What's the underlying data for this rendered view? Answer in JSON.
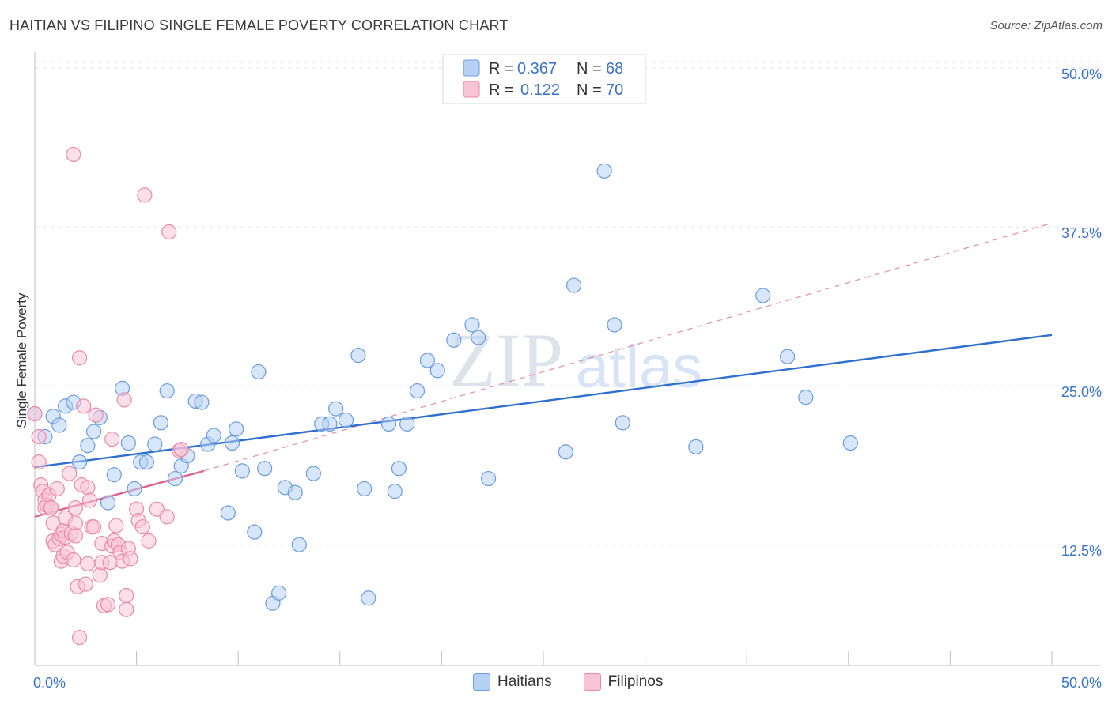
{
  "title": "HAITIAN VS FILIPINO SINGLE FEMALE POVERTY CORRELATION CHART",
  "source": "Source: ZipAtlas.com",
  "watermark": {
    "zip": "ZIP",
    "atlas": "atlas"
  },
  "legend": {
    "r_label": "R =",
    "n_label": "N =",
    "items": [
      {
        "r": "0.367",
        "n": "68",
        "fill": "#b6d1f3",
        "stroke": "#6a9be0"
      },
      {
        "r": "0.122",
        "n": "70",
        "fill": "#f9c4d5",
        "stroke": "#e98aa8"
      }
    ]
  },
  "bottom_legend": [
    {
      "label": "Haitians",
      "fill": "#b6d1f3",
      "stroke": "#6a9be0"
    },
    {
      "label": "Filipinos",
      "fill": "#f9c4d5",
      "stroke": "#e98aa8"
    }
  ],
  "chart_data": {
    "type": "scatter",
    "ylabel": "Single Female Poverty",
    "xlim": [
      0,
      50
    ],
    "ylim": [
      3,
      50.5
    ],
    "x_tick_labels": [
      {
        "value": 0,
        "label": "0.0%"
      },
      {
        "value": 50,
        "label": "50.0%"
      }
    ],
    "y_tick_labels": [
      {
        "value": 50,
        "label": "50.0%"
      },
      {
        "value": 37.5,
        "label": "37.5%"
      },
      {
        "value": 25,
        "label": "25.0%"
      },
      {
        "value": 12.5,
        "label": "12.5%"
      }
    ],
    "x_minor_ticks": [
      5,
      10,
      15,
      20,
      25,
      30,
      35,
      40,
      45,
      50
    ],
    "series": [
      {
        "name": "Haitians",
        "color": "#6a9be0",
        "fill": "#b6d1f3",
        "trend": {
          "x": [
            0,
            50
          ],
          "y": [
            18.6,
            29.0
          ],
          "color": "#2f6fd0"
        },
        "points": [
          [
            0.0,
            22.8
          ],
          [
            0.5,
            21.0
          ],
          [
            0.9,
            22.6
          ],
          [
            1.2,
            21.9
          ],
          [
            1.5,
            23.4
          ],
          [
            1.9,
            23.7
          ],
          [
            2.2,
            19.0
          ],
          [
            2.6,
            20.3
          ],
          [
            2.9,
            21.4
          ],
          [
            3.2,
            22.5
          ],
          [
            3.6,
            15.8
          ],
          [
            3.9,
            18.0
          ],
          [
            4.3,
            24.8
          ],
          [
            4.6,
            20.5
          ],
          [
            4.9,
            16.9
          ],
          [
            5.2,
            19.0
          ],
          [
            5.5,
            19.0
          ],
          [
            5.9,
            20.4
          ],
          [
            6.2,
            22.1
          ],
          [
            6.5,
            24.6
          ],
          [
            6.9,
            17.7
          ],
          [
            7.2,
            18.7
          ],
          [
            7.5,
            19.5
          ],
          [
            7.9,
            23.8
          ],
          [
            8.2,
            23.7
          ],
          [
            8.5,
            20.4
          ],
          [
            8.8,
            21.1
          ],
          [
            9.5,
            15.0
          ],
          [
            9.7,
            20.5
          ],
          [
            9.9,
            21.6
          ],
          [
            10.2,
            18.3
          ],
          [
            10.8,
            13.5
          ],
          [
            11.0,
            26.1
          ],
          [
            11.3,
            18.5
          ],
          [
            11.7,
            7.9
          ],
          [
            12.0,
            8.7
          ],
          [
            12.3,
            17.0
          ],
          [
            12.8,
            16.6
          ],
          [
            13.0,
            12.5
          ],
          [
            13.7,
            18.1
          ],
          [
            14.1,
            22.0
          ],
          [
            14.5,
            22.0
          ],
          [
            14.8,
            23.2
          ],
          [
            15.3,
            22.3
          ],
          [
            15.9,
            27.4
          ],
          [
            16.2,
            16.9
          ],
          [
            16.4,
            8.3
          ],
          [
            17.4,
            22.0
          ],
          [
            17.7,
            16.7
          ],
          [
            17.9,
            18.5
          ],
          [
            18.3,
            22.0
          ],
          [
            18.8,
            24.6
          ],
          [
            19.3,
            27.0
          ],
          [
            19.8,
            26.2
          ],
          [
            20.6,
            28.6
          ],
          [
            21.5,
            29.8
          ],
          [
            21.8,
            28.8
          ],
          [
            22.3,
            17.7
          ],
          [
            26.1,
            19.8
          ],
          [
            26.5,
            32.9
          ],
          [
            28.0,
            41.9
          ],
          [
            28.5,
            29.8
          ],
          [
            28.9,
            22.1
          ],
          [
            32.5,
            20.2
          ],
          [
            35.8,
            32.1
          ],
          [
            37.0,
            27.3
          ],
          [
            37.9,
            24.1
          ],
          [
            40.1,
            20.5
          ]
        ]
      },
      {
        "name": "Filipinos",
        "color": "#e98aa8",
        "fill": "#f9c4d5",
        "trend": {
          "x": [
            0,
            8.3
          ],
          "y": [
            14.7,
            18.3
          ],
          "color": "#e0628e"
        },
        "trend_ext": {
          "x": [
            8.3,
            50
          ],
          "y": [
            18.3,
            37.8
          ],
          "color": "#e98aa8"
        },
        "points": [
          [
            0.0,
            22.8
          ],
          [
            0.2,
            21.0
          ],
          [
            0.2,
            19.0
          ],
          [
            0.3,
            17.2
          ],
          [
            0.4,
            16.7
          ],
          [
            0.5,
            16.0
          ],
          [
            0.5,
            15.4
          ],
          [
            0.6,
            15.6
          ],
          [
            0.7,
            16.4
          ],
          [
            0.8,
            15.4
          ],
          [
            0.8,
            15.4
          ],
          [
            0.9,
            14.2
          ],
          [
            0.9,
            12.8
          ],
          [
            1.0,
            12.5
          ],
          [
            1.1,
            16.9
          ],
          [
            1.2,
            13.0
          ],
          [
            1.3,
            11.2
          ],
          [
            1.3,
            13.3
          ],
          [
            1.4,
            13.6
          ],
          [
            1.4,
            11.6
          ],
          [
            1.5,
            14.6
          ],
          [
            1.5,
            13.1
          ],
          [
            1.6,
            11.9
          ],
          [
            1.7,
            18.1
          ],
          [
            1.8,
            13.4
          ],
          [
            1.9,
            11.3
          ],
          [
            1.9,
            43.2
          ],
          [
            2.0,
            14.2
          ],
          [
            2.0,
            13.2
          ],
          [
            2.0,
            15.4
          ],
          [
            2.1,
            9.2
          ],
          [
            2.2,
            27.2
          ],
          [
            2.2,
            5.2
          ],
          [
            2.3,
            17.2
          ],
          [
            2.4,
            23.4
          ],
          [
            2.5,
            9.4
          ],
          [
            2.6,
            17.0
          ],
          [
            2.6,
            11.0
          ],
          [
            2.7,
            16.0
          ],
          [
            2.8,
            13.9
          ],
          [
            2.9,
            13.9
          ],
          [
            3.0,
            22.7
          ],
          [
            3.2,
            10.1
          ],
          [
            3.3,
            12.6
          ],
          [
            3.3,
            11.1
          ],
          [
            3.4,
            7.7
          ],
          [
            3.6,
            7.8
          ],
          [
            3.7,
            11.1
          ],
          [
            3.8,
            12.4
          ],
          [
            3.8,
            20.8
          ],
          [
            3.9,
            12.8
          ],
          [
            4.0,
            14.0
          ],
          [
            4.1,
            12.5
          ],
          [
            4.2,
            11.9
          ],
          [
            4.3,
            11.2
          ],
          [
            4.4,
            23.9
          ],
          [
            4.5,
            8.5
          ],
          [
            4.5,
            7.4
          ],
          [
            4.6,
            12.2
          ],
          [
            4.7,
            11.4
          ],
          [
            5.0,
            15.3
          ],
          [
            5.1,
            14.4
          ],
          [
            5.3,
            13.9
          ],
          [
            5.4,
            40.0
          ],
          [
            5.6,
            12.8
          ],
          [
            6.0,
            15.3
          ],
          [
            6.5,
            14.7
          ],
          [
            6.6,
            37.1
          ],
          [
            7.1,
            19.9
          ],
          [
            7.2,
            20.0
          ]
        ]
      }
    ]
  }
}
